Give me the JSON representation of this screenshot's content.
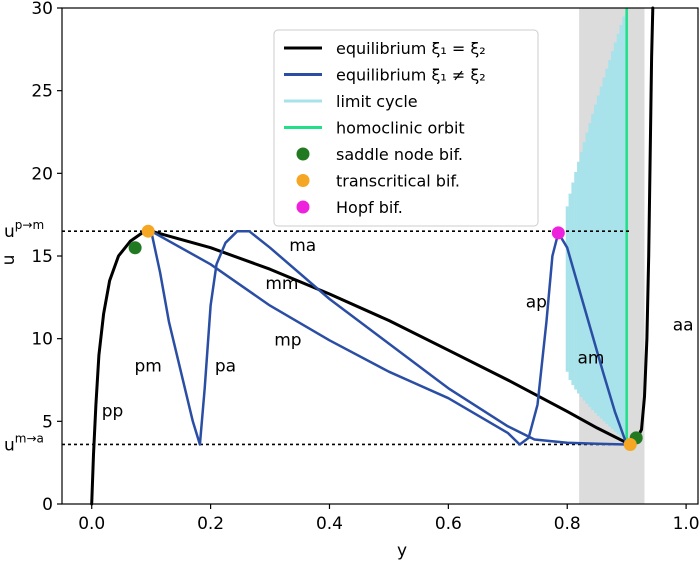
{
  "chart_data": {
    "type": "line",
    "xlabel": "y",
    "ylabel": "u",
    "xlim": [
      -0.05,
      1.02
    ],
    "ylim": [
      0,
      30
    ],
    "x_ticks": [
      0.0,
      0.2,
      0.4,
      0.6,
      0.8,
      1.0
    ],
    "x_tick_labels": [
      "0.0",
      "0.2",
      "0.4",
      "0.6",
      "0.8",
      "1.0"
    ],
    "y_ticks": [
      0,
      5,
      10,
      15,
      20,
      25,
      30
    ],
    "y_tick_labels": [
      "0",
      "5",
      "10",
      "15",
      "20",
      "25",
      "30"
    ],
    "grid": false,
    "legend_position": "top-right",
    "legend": [
      {
        "label": "equilibrium ξ₁ = ξ₂",
        "kind": "line",
        "color": "#000000"
      },
      {
        "label": "equilibrium ξ₁ ≠ ξ₂",
        "kind": "line",
        "color": "#2b4ea5"
      },
      {
        "label": "limit cycle",
        "kind": "line",
        "color": "#a8e2ea"
      },
      {
        "label": "homoclinic orbit",
        "kind": "line",
        "color": "#22e08a"
      },
      {
        "label": "saddle node bif.",
        "kind": "marker",
        "color": "#217a21"
      },
      {
        "label": "transcritical bif.",
        "kind": "marker",
        "color": "#f5a623"
      },
      {
        "label": "Hopf bif.",
        "kind": "marker",
        "color": "#ee22dd"
      }
    ],
    "reference_lines": [
      {
        "label_main": "u",
        "label_sup": "p→m",
        "y": 16.5
      },
      {
        "label_main": "u",
        "label_sup": "m→a",
        "y": 3.6
      }
    ],
    "shaded_band": {
      "x": [
        0.82,
        0.93
      ],
      "color": "#dcdcdc"
    },
    "homoclinic_x": 0.9,
    "limit_cycle": {
      "x_start": 0.8,
      "x_end": 0.9,
      "top_start": 18.0,
      "top_end": 30.0,
      "bottom_start": 8.0,
      "bottom_end": 3.8
    },
    "series": [
      {
        "name": "equilibrium ξ₁ = ξ₂",
        "color": "#000000",
        "segments": [
          [
            [
              0.0,
              0.0
            ],
            [
              0.003,
              3.0
            ],
            [
              0.007,
              6.0
            ],
            [
              0.012,
              9.0
            ],
            [
              0.02,
              11.5
            ],
            [
              0.03,
              13.5
            ],
            [
              0.045,
              15.0
            ],
            [
              0.065,
              15.9
            ],
            [
              0.085,
              16.4
            ],
            [
              0.1,
              16.5
            ],
            [
              0.2,
              15.5
            ],
            [
              0.3,
              14.2
            ],
            [
              0.4,
              12.7
            ],
            [
              0.5,
              11.1
            ],
            [
              0.6,
              9.3
            ],
            [
              0.7,
              7.5
            ],
            [
              0.8,
              5.6
            ],
            [
              0.85,
              4.6
            ],
            [
              0.9,
              3.7
            ],
            [
              0.915,
              3.8
            ],
            [
              0.925,
              4.5
            ],
            [
              0.93,
              6.5
            ],
            [
              0.934,
              10.0
            ],
            [
              0.937,
              15.0
            ],
            [
              0.94,
              22.0
            ],
            [
              0.942,
              27.0
            ],
            [
              0.944,
              30.0
            ]
          ]
        ]
      },
      {
        "name": "equilibrium ξ₁ ≠ ξ₂",
        "color": "#2b4ea5",
        "segments": [
          [
            [
              0.1,
              16.5
            ],
            [
              0.115,
              14.0
            ],
            [
              0.13,
              11.0
            ],
            [
              0.15,
              8.0
            ],
            [
              0.17,
              5.0
            ],
            [
              0.182,
              3.6
            ],
            [
              0.19,
              7.0
            ],
            [
              0.2,
              12.0
            ],
            [
              0.21,
              14.5
            ],
            [
              0.225,
              15.8
            ],
            [
              0.245,
              16.5
            ],
            [
              0.265,
              16.5
            ],
            [
              0.3,
              15.5
            ],
            [
              0.4,
              12.4
            ],
            [
              0.5,
              9.7
            ],
            [
              0.6,
              7.0
            ],
            [
              0.7,
              4.7
            ],
            [
              0.745,
              3.9
            ],
            [
              0.8,
              3.7
            ],
            [
              0.85,
              3.65
            ],
            [
              0.9,
              3.6
            ]
          ],
          [
            [
              0.1,
              16.5
            ],
            [
              0.2,
              14.5
            ],
            [
              0.3,
              12.0
            ],
            [
              0.4,
              9.9
            ],
            [
              0.5,
              8.0
            ],
            [
              0.6,
              6.4
            ],
            [
              0.7,
              4.3
            ],
            [
              0.72,
              3.6
            ],
            [
              0.735,
              4.0
            ],
            [
              0.75,
              6.0
            ],
            [
              0.765,
              11.0
            ],
            [
              0.775,
              15.0
            ],
            [
              0.785,
              16.4
            ],
            [
              0.8,
              15.5
            ],
            [
              0.82,
              13.0
            ],
            [
              0.84,
              10.5
            ],
            [
              0.86,
              8.0
            ],
            [
              0.88,
              5.6
            ],
            [
              0.9,
              3.6
            ]
          ]
        ]
      }
    ],
    "bifurcation_points": [
      {
        "type": "saddle node",
        "x": 0.073,
        "y": 15.5,
        "color": "#217a21"
      },
      {
        "type": "saddle node",
        "x": 0.916,
        "y": 4.0,
        "color": "#217a21"
      },
      {
        "type": "transcritical",
        "x": 0.095,
        "y": 16.5,
        "color": "#f5a623"
      },
      {
        "type": "transcritical",
        "x": 0.906,
        "y": 3.6,
        "color": "#f5a623"
      },
      {
        "type": "Hopf",
        "x": 0.785,
        "y": 16.4,
        "color": "#ee22dd"
      }
    ],
    "annotations": [
      {
        "text": "pp",
        "x": 0.035,
        "y": 5.3
      },
      {
        "text": "pm",
        "x": 0.095,
        "y": 8.0
      },
      {
        "text": "pa",
        "x": 0.225,
        "y": 8.0
      },
      {
        "text": "ma",
        "x": 0.355,
        "y": 15.3
      },
      {
        "text": "mm",
        "x": 0.32,
        "y": 13.0
      },
      {
        "text": "mp",
        "x": 0.33,
        "y": 9.6
      },
      {
        "text": "ap",
        "x": 0.748,
        "y": 11.9
      },
      {
        "text": "am",
        "x": 0.84,
        "y": 8.5
      },
      {
        "text": "aa",
        "x": 0.995,
        "y": 10.5
      }
    ]
  }
}
